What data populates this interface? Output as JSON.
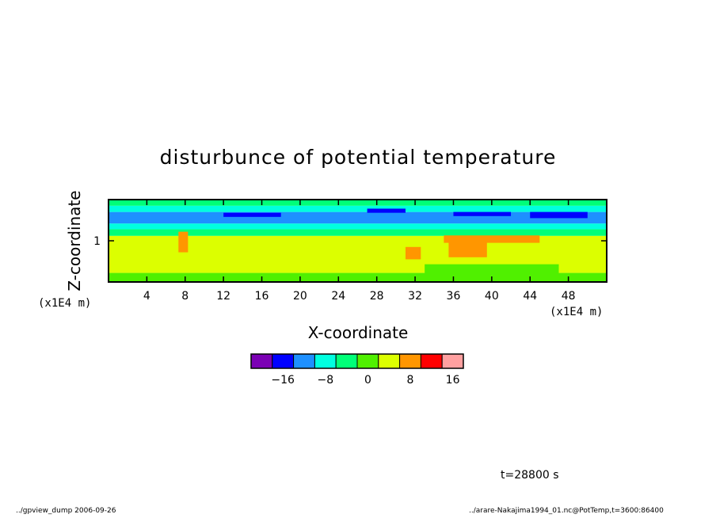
{
  "chart_data": {
    "type": "heatmap",
    "title": "disturbunce of potential temperature",
    "xlabel": "X-coordinate",
    "ylabel": "Z-coordinate",
    "x_unit": "(x1E4 m)",
    "y_unit": "(x1E4 m)",
    "x_ticks": [
      4,
      8,
      12,
      16,
      20,
      24,
      28,
      32,
      36,
      40,
      44,
      48
    ],
    "y_ticks": [
      1
    ],
    "xlim": [
      0,
      52
    ],
    "ylim": [
      0,
      2
    ],
    "colorbar": {
      "colors": [
        "#7b00b4",
        "#0000ff",
        "#1e90ff",
        "#00ffe0",
        "#00ff78",
        "#50f000",
        "#dcff00",
        "#ff9600",
        "#ff0000",
        "#ffa0a0"
      ],
      "tick_labels": [
        "-16",
        "-8",
        "0",
        "8",
        "16"
      ],
      "tick_positions": [
        1.5,
        3.5,
        5.5,
        7.5,
        9.5
      ]
    },
    "layers": [
      {
        "value": 4,
        "z_from": 0.0,
        "z_to": 0.22,
        "color": "#50f000"
      },
      {
        "value": 6,
        "z_from": 0.22,
        "z_to": 1.12,
        "color": "#dcff00"
      },
      {
        "value": 2,
        "z_from": 1.12,
        "z_to": 1.28,
        "color": "#00ff78"
      },
      {
        "value": -2,
        "z_from": 1.28,
        "z_to": 1.42,
        "color": "#00ffe0"
      },
      {
        "value": -6,
        "z_from": 1.42,
        "z_to": 1.7,
        "color": "#1e90ff"
      },
      {
        "value": -2,
        "z_from": 1.7,
        "z_to": 1.85,
        "color": "#00ffe0"
      },
      {
        "value": 2,
        "z_from": 1.85,
        "z_to": 2.0,
        "color": "#00ff78"
      }
    ],
    "patches": [
      {
        "value": 10,
        "x": 7.3,
        "z": 0.72,
        "w": 1.0,
        "h": 0.5,
        "color": "#ff9600"
      },
      {
        "value": 10,
        "x": 31.0,
        "z": 0.55,
        "w": 1.6,
        "h": 0.3,
        "color": "#ff9600"
      },
      {
        "value": 10,
        "x": 35.0,
        "z": 0.95,
        "w": 10.0,
        "h": 0.18,
        "color": "#ff9600"
      },
      {
        "value": 10,
        "x": 35.5,
        "z": 0.6,
        "w": 4.0,
        "h": 0.4,
        "color": "#ff9600"
      },
      {
        "value": -12,
        "x": 12.0,
        "z": 1.58,
        "w": 6.0,
        "h": 0.1,
        "color": "#0000ff"
      },
      {
        "value": -12,
        "x": 27.0,
        "z": 1.68,
        "w": 4.0,
        "h": 0.1,
        "color": "#0000ff"
      },
      {
        "value": -12,
        "x": 36.0,
        "z": 1.6,
        "w": 6.0,
        "h": 0.1,
        "color": "#0000ff"
      },
      {
        "value": -12,
        "x": 44.0,
        "z": 1.55,
        "w": 6.0,
        "h": 0.15,
        "color": "#0000ff"
      },
      {
        "value": 4,
        "x": 33.0,
        "z": 0.18,
        "w": 14.0,
        "h": 0.25,
        "color": "#50f000"
      }
    ]
  },
  "labels": {
    "time": "t=28800 s",
    "footer_left": "../gpview_dump 2006-09-26",
    "footer_right": "../arare-Nakajima1994_01.nc@PotTemp,t=3600:86400"
  }
}
